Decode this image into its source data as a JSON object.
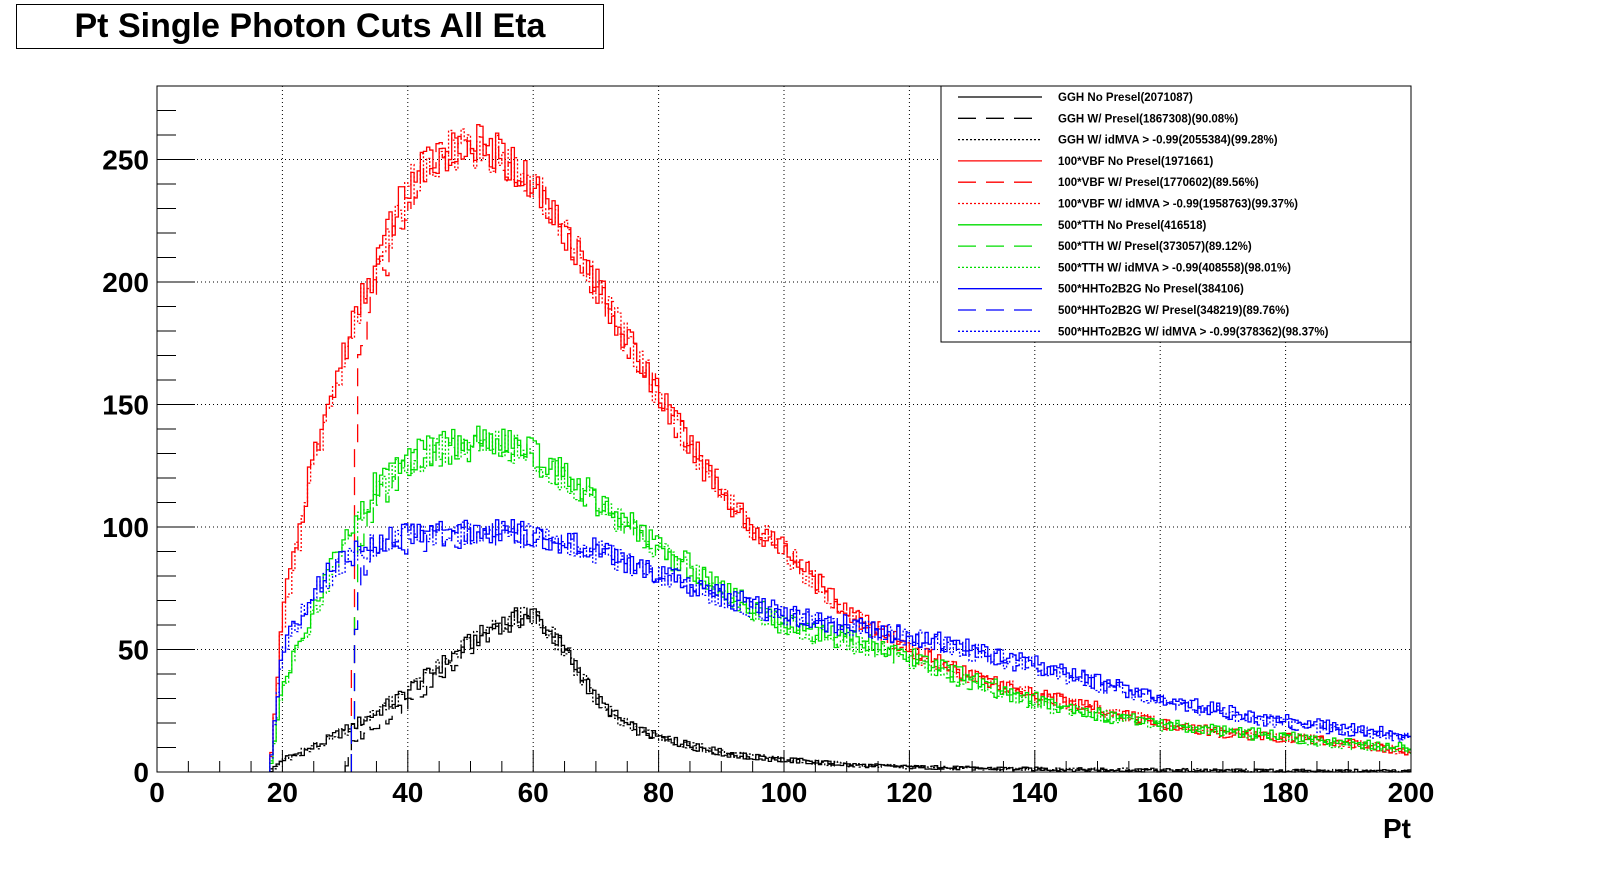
{
  "chart_data": {
    "type": "line",
    "title": "Pt Single Photon Cuts All Eta",
    "xlabel": "Pt",
    "ylabel": "",
    "xlim": [
      0,
      200
    ],
    "ylim": [
      0,
      280
    ],
    "x_ticks": [
      "0",
      "20",
      "40",
      "60",
      "80",
      "100",
      "120",
      "140",
      "160",
      "180",
      "200"
    ],
    "y_ticks": [
      "0",
      "50",
      "100",
      "150",
      "200",
      "250"
    ],
    "grid": true,
    "legend_position": "top-right",
    "x": [
      18,
      20,
      25,
      30,
      31,
      32,
      35,
      40,
      45,
      50,
      55,
      60,
      65,
      70,
      75,
      80,
      85,
      90,
      95,
      100,
      105,
      110,
      115,
      120,
      130,
      140,
      150,
      160,
      170,
      180,
      190,
      200
    ],
    "series": [
      {
        "name": "GGH No Presel(2071087)",
        "color": "#000000",
        "style": "solid",
        "values": [
          0,
          5,
          10,
          17,
          18,
          20,
          24,
          33,
          43,
          53,
          61,
          65,
          50,
          30,
          19,
          14,
          11,
          8,
          6,
          5,
          4,
          3,
          2.5,
          2,
          1.5,
          1.2,
          0.9,
          0.7,
          0.5,
          0.4,
          0.3,
          0.2
        ]
      },
      {
        "name": "GGH W/ Presel(1867308)(90.08%)",
        "color": "#000000",
        "style": "dashed",
        "values": [
          0,
          0,
          0,
          0,
          12,
          14,
          19,
          28,
          40,
          51,
          60,
          64,
          50,
          30,
          19,
          14,
          11,
          8,
          6,
          5,
          4,
          3,
          2.5,
          2,
          1.5,
          1.2,
          0.9,
          0.7,
          0.5,
          0.4,
          0.3,
          0.2
        ]
      },
      {
        "name": "GGH W/ idMVA > -0.99(2055384)(99.28%)",
        "color": "#000000",
        "style": "dotted",
        "values": [
          0,
          5,
          10,
          17,
          18,
          20,
          24,
          33,
          43,
          53,
          61,
          65,
          50,
          30,
          19,
          14,
          11,
          8,
          6,
          5,
          4,
          3,
          2.5,
          2,
          1.5,
          1.2,
          0.9,
          0.7,
          0.5,
          0.4,
          0.3,
          0.2
        ]
      },
      {
        "name": "100*VBF No Presel(1971661)",
        "color": "#ff0000",
        "style": "solid",
        "values": [
          0,
          65,
          128,
          173,
          180,
          188,
          208,
          240,
          253,
          257,
          252,
          240,
          222,
          200,
          176,
          155,
          133,
          115,
          100,
          92,
          78,
          66,
          58,
          50,
          40,
          32,
          26,
          20,
          16,
          14,
          12,
          8
        ]
      },
      {
        "name": "100*VBF W/ Presel(1770602)(89.56%)",
        "color": "#ff0000",
        "style": "dashed",
        "values": [
          0,
          0,
          0,
          0,
          0,
          170,
          198,
          233,
          250,
          255,
          250,
          240,
          222,
          200,
          176,
          155,
          133,
          115,
          100,
          92,
          78,
          66,
          58,
          50,
          40,
          32,
          26,
          20,
          16,
          14,
          12,
          8
        ]
      },
      {
        "name": "100*VBF W/ idMVA > -0.99(1958763)(99.37%)",
        "color": "#ff0000",
        "style": "dotted",
        "values": [
          0,
          60,
          124,
          170,
          178,
          186,
          206,
          238,
          252,
          256,
          251,
          239,
          221,
          199,
          175,
          154,
          132,
          114,
          99,
          91,
          77,
          65,
          57,
          49,
          39,
          31,
          25,
          20,
          16,
          14,
          12,
          8
        ]
      },
      {
        "name": "500*TTH No Presel(416518)",
        "color": "#00dd00",
        "style": "solid",
        "values": [
          0,
          35,
          68,
          96,
          100,
          104,
          118,
          128,
          133,
          135,
          136,
          130,
          122,
          112,
          102,
          92,
          84,
          76,
          68,
          62,
          58,
          55,
          52,
          48,
          38,
          30,
          24,
          20,
          17,
          15,
          12,
          10
        ]
      },
      {
        "name": "500*TTH W/ Presel(373057)(89.12%)",
        "color": "#00dd00",
        "style": "dashed",
        "values": [
          0,
          0,
          0,
          0,
          0,
          90,
          110,
          124,
          130,
          133,
          134,
          128,
          120,
          110,
          100,
          90,
          82,
          74,
          66,
          60,
          56,
          53,
          50,
          46,
          36,
          28,
          23,
          19,
          16,
          14,
          11,
          9
        ]
      },
      {
        "name": "500*TTH W/ idMVA > -0.99(408558)(98.01%)",
        "color": "#00dd00",
        "style": "dotted",
        "values": [
          0,
          32,
          65,
          94,
          98,
          102,
          116,
          126,
          131,
          133,
          134,
          128,
          120,
          110,
          100,
          90,
          82,
          74,
          66,
          60,
          56,
          53,
          50,
          46,
          36,
          28,
          23,
          19,
          16,
          14,
          11,
          9
        ]
      },
      {
        "name": "500*HHTo2B2G No Presel(384106)",
        "color": "#0000ff",
        "style": "solid",
        "values": [
          0,
          50,
          75,
          87,
          89,
          90,
          94,
          97,
          99,
          99,
          99,
          97,
          94,
          91,
          86,
          82,
          77,
          72,
          68,
          65,
          62,
          60,
          58,
          56,
          50,
          44,
          37,
          30,
          25,
          21,
          18,
          15
        ]
      },
      {
        "name": "500*HHTo2B2G W/ Presel(348219)(89.76%)",
        "color": "#0000ff",
        "style": "dashed",
        "values": [
          0,
          0,
          0,
          0,
          0,
          80,
          88,
          93,
          96,
          97,
          97,
          96,
          93,
          90,
          85,
          81,
          76,
          71,
          67,
          64,
          61,
          59,
          57,
          55,
          49,
          43,
          36,
          29,
          24,
          20,
          17,
          14
        ]
      },
      {
        "name": "500*HHTo2B2G W/ idMVA > -0.99(378362)(98.37%)",
        "color": "#0000ff",
        "style": "dotted",
        "values": [
          0,
          48,
          73,
          86,
          88,
          89,
          93,
          96,
          98,
          98,
          98,
          96,
          93,
          90,
          85,
          81,
          76,
          71,
          67,
          64,
          61,
          59,
          57,
          55,
          49,
          43,
          36,
          29,
          24,
          20,
          17,
          14
        ]
      }
    ]
  }
}
